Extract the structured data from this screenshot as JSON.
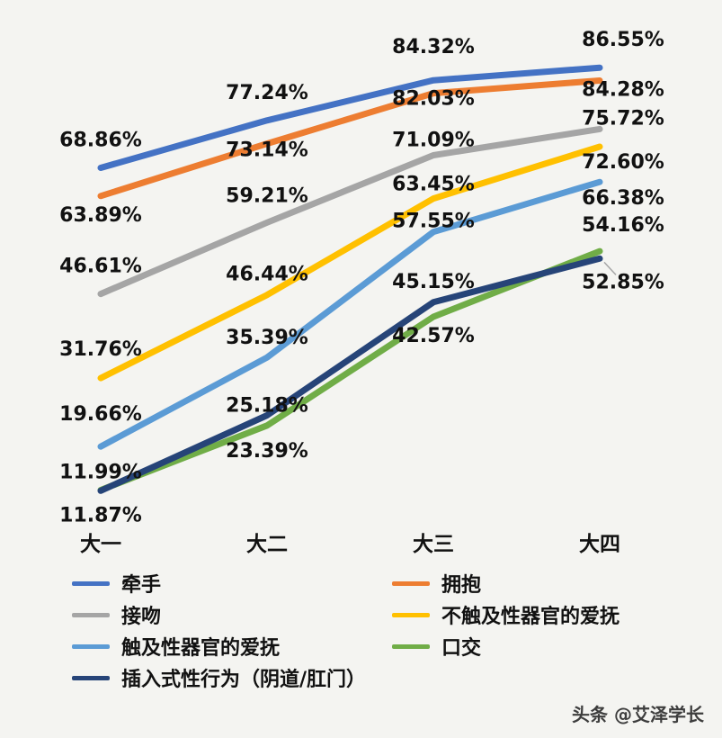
{
  "watermark": {
    "text": "头条 @艾泽学长"
  },
  "chart_data": {
    "type": "line",
    "title": "",
    "xlabel": "",
    "ylabel": "",
    "categories": [
      "大一",
      "大二",
      "大三",
      "大四"
    ],
    "series": [
      {
        "name": "牵手",
        "color": "#4472C4",
        "values": [
          68.86,
          77.24,
          84.32,
          86.55
        ],
        "label_dy": [
          -24,
          -24,
          -30,
          -24
        ]
      },
      {
        "name": "拥抱",
        "color": "#ED7D31",
        "values": [
          63.89,
          73.14,
          82.03,
          84.28
        ],
        "label_dy": [
          28,
          14,
          13,
          17
        ]
      },
      {
        "name": "接吻",
        "color": "#A5A5A5",
        "values": [
          46.61,
          59.21,
          71.09,
          75.72
        ],
        "label_dy": [
          -24,
          -23,
          -10,
          -5
        ]
      },
      {
        "name": "不触及性器官的爱抚",
        "color": "#FFC000",
        "values": [
          31.76,
          46.44,
          63.45,
          72.6
        ],
        "label_dy": [
          -25,
          -16,
          -9,
          24
        ]
      },
      {
        "name": "触及性器官的爱抚",
        "color": "#5B9BD5",
        "values": [
          19.66,
          35.39,
          57.55,
          66.38
        ],
        "label_dy": [
          -29,
          -15,
          -5,
          25
        ]
      },
      {
        "name": "口交",
        "color": "#70AD47",
        "values": [
          11.99,
          23.39,
          42.57,
          54.16
        ],
        "label_dy": [
          -13,
          35,
          28,
          -22
        ]
      },
      {
        "name": "插入式性行为（阴道/肛门）",
        "color": "#264478",
        "values": [
          11.87,
          25.18,
          45.15,
          52.85
        ],
        "label_dy": [
          34,
          -4,
          -16,
          33
        ]
      }
    ],
    "ylim": [
      0,
      95
    ],
    "grid": false,
    "axes_visible": false,
    "data_labels": "percent, 2 decimals",
    "legend_position": "bottom",
    "label_dx_per_column": [
      0,
      0,
      0,
      26
    ],
    "leader_line": {
      "series": "插入式性行为（阴道/肛门）",
      "point": 3
    }
  }
}
